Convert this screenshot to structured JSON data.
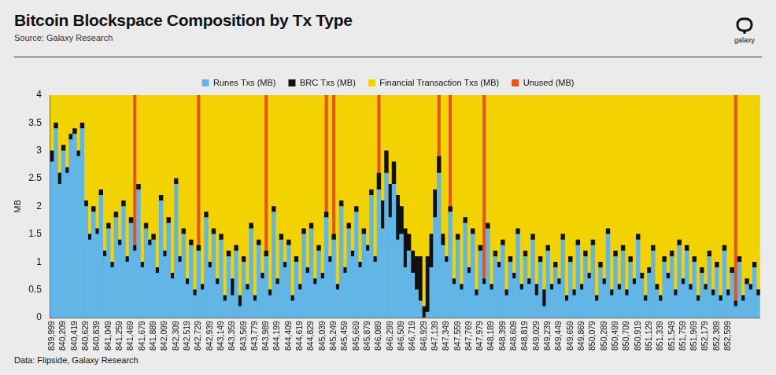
{
  "chart_data": {
    "type": "bar",
    "title": "Bitcoin Blockspace Composition by Tx Type",
    "subtitle": "Source: Galaxy Research",
    "brand": "galaxy",
    "footnote": "Data: Flipside, Galaxy Research",
    "y_label": "MB",
    "stacked": true,
    "grid": false,
    "legend": "top",
    "ylim": [
      0,
      4
    ],
    "yticks": [
      0,
      0.5,
      1,
      1.5,
      2,
      2.5,
      3,
      3.5,
      4
    ],
    "categories": [
      "839,999",
      null,
      null,
      "840,209",
      null,
      null,
      "840,419",
      null,
      null,
      "840,629",
      null,
      null,
      "840,839",
      null,
      null,
      "841,049",
      null,
      null,
      "841,259",
      null,
      null,
      "841,469",
      null,
      null,
      "841,679",
      null,
      null,
      "841,889",
      null,
      null,
      "842,099",
      null,
      null,
      "842,309",
      null,
      null,
      "842,519",
      null,
      null,
      "842,729",
      null,
      null,
      "842,939",
      null,
      null,
      "843,149",
      null,
      null,
      "843,359",
      null,
      null,
      "843,569",
      null,
      null,
      "843,779",
      null,
      null,
      "843,989",
      null,
      null,
      "844,199",
      null,
      null,
      "844,409",
      null,
      null,
      "844,619",
      null,
      null,
      "844,829",
      null,
      null,
      "845,039",
      null,
      null,
      "845,249",
      null,
      null,
      "845,459",
      null,
      null,
      "845,669",
      null,
      null,
      "845,879",
      null,
      null,
      "846,089",
      null,
      null,
      "846,299",
      null,
      null,
      "846,509",
      null,
      null,
      "846,719",
      null,
      null,
      "846,929",
      null,
      null,
      "847,139",
      null,
      null,
      "847,349",
      null,
      null,
      "847,559",
      null,
      null,
      "847,769",
      null,
      null,
      "847,979",
      null,
      null,
      "848,189",
      null,
      null,
      "848,399",
      null,
      null,
      "848,609",
      null,
      null,
      "848,819",
      null,
      null,
      "849,029",
      null,
      null,
      "849,239",
      null,
      null,
      "849,449",
      null,
      null,
      "849,659",
      null,
      null,
      "849,869",
      null,
      null,
      "850,079",
      null,
      null,
      "850,289",
      null,
      null,
      "850,499",
      null,
      null,
      "850,709",
      null,
      null,
      "850,919",
      null,
      null,
      "851,129",
      null,
      null,
      "851,339",
      null,
      null,
      "851,549",
      null,
      null,
      "851,759",
      null,
      null,
      "851,969",
      null,
      null,
      "852,179",
      null,
      null,
      "852,389",
      null,
      null,
      "852,599",
      null,
      null,
      null,
      null,
      null,
      null,
      null,
      null
    ],
    "series": [
      {
        "name": "Runes Txs (MB)",
        "color": "#62b6e6",
        "values": [
          2.8,
          3.4,
          2.4,
          3.0,
          2.6,
          3.2,
          3.3,
          2.9,
          3.4,
          2.0,
          1.4,
          1.9,
          1.5,
          2.2,
          1.1,
          1.6,
          0.9,
          1.8,
          1.3,
          2.0,
          1.0,
          1.7,
          1.2,
          2.3,
          0.9,
          1.6,
          1.3,
          1.4,
          0.8,
          2.1,
          1.1,
          1.7,
          0.7,
          2.4,
          1.0,
          1.5,
          0.6,
          1.3,
          0.4,
          1.2,
          0.5,
          1.8,
          0.9,
          1.5,
          0.6,
          1.4,
          0.3,
          1.1,
          0.4,
          1.2,
          0.2,
          1.0,
          0.5,
          1.6,
          0.3,
          1.3,
          0.7,
          1.1,
          0.4,
          1.9,
          0.6,
          1.4,
          0.9,
          1.3,
          0.3,
          1.0,
          0.5,
          1.5,
          0.8,
          1.6,
          0.6,
          1.2,
          0.7,
          1.8,
          1.0,
          1.4,
          0.5,
          2.0,
          0.8,
          1.6,
          1.1,
          1.9,
          0.9,
          1.5,
          1.2,
          2.2,
          1.0,
          2.3,
          1.6,
          2.6,
          1.8,
          2.4,
          1.4,
          1.5,
          0.9,
          1.2,
          0.8,
          0.5,
          0.3,
          0,
          0.1,
          0.9,
          1.8,
          2.6,
          1.3,
          1.0,
          1.9,
          0.6,
          1.4,
          0.5,
          1.7,
          0.8,
          1.5,
          0.4,
          1.2,
          0.6,
          1.6,
          0.5,
          1.1,
          0.9,
          1.3,
          0.4,
          1.0,
          0.7,
          1.5,
          0.5,
          1.1,
          0.6,
          1.4,
          0.4,
          1.0,
          0.2,
          1.2,
          0.5,
          0.9,
          0.6,
          1.4,
          0.3,
          1.0,
          0.4,
          1.3,
          0.5,
          1.1,
          0.7,
          1.3,
          0.3,
          0.9,
          0.6,
          1.5,
          0.4,
          1.1,
          0.5,
          1.2,
          0.4,
          1.0,
          0.6,
          1.4,
          0.7,
          0.3,
          0.8,
          1.2,
          0.5,
          0.3,
          1.0,
          0.7,
          1.1,
          0.4,
          1.3,
          0.6,
          1.2,
          0.5,
          1.0,
          0.3,
          0.8,
          0.5,
          1.1,
          0.4,
          0.9,
          0.3,
          1.2,
          0.4,
          0.8,
          0.2,
          1.0,
          0.3,
          0.6,
          0.5,
          0.9,
          0.4
        ]
      },
      {
        "name": "BRC Txs (MB)",
        "color": "#111111",
        "values": [
          0.2,
          0.1,
          0.2,
          0.1,
          0.1,
          0.1,
          0.1,
          0.1,
          0.1,
          0.1,
          0.1,
          0.1,
          0.1,
          0.1,
          0.1,
          0.1,
          0.1,
          0.1,
          0.1,
          0.1,
          0.1,
          0.1,
          0.1,
          0.1,
          0.1,
          0.1,
          0.1,
          0.1,
          0.1,
          0.1,
          0.1,
          0.1,
          0.1,
          0.1,
          0.1,
          0.1,
          0.1,
          0.1,
          0.1,
          0.1,
          0.1,
          0.1,
          0.1,
          0.1,
          0.1,
          0.1,
          0.1,
          0.1,
          0.3,
          0.1,
          0.2,
          0.1,
          0.1,
          0.1,
          0.1,
          0.1,
          0.1,
          0.1,
          0.1,
          0.1,
          0.1,
          0.1,
          0.1,
          0.1,
          0.1,
          0.1,
          0.1,
          0.1,
          0.1,
          0.1,
          0.1,
          0.1,
          0.1,
          0.1,
          0.1,
          0.1,
          0.1,
          0.1,
          0.1,
          0.1,
          0.1,
          0.1,
          0.1,
          0.1,
          0.1,
          0.1,
          0.1,
          0.3,
          0.5,
          0.4,
          0.6,
          0.4,
          0.8,
          0.5,
          0.7,
          0.3,
          0.4,
          0.6,
          0.8,
          0.2,
          1.0,
          0.6,
          0.5,
          0.3,
          0.2,
          0.1,
          0.1,
          0.1,
          0.1,
          0.1,
          0.1,
          0.1,
          0.1,
          0.1,
          0.1,
          0.1,
          0.1,
          0.1,
          0.1,
          0.1,
          0.1,
          0.1,
          0.1,
          0.1,
          0.1,
          0.1,
          0.1,
          0.1,
          0.1,
          0.2,
          0.1,
          0.3,
          0.1,
          0.1,
          0.1,
          0.1,
          0.1,
          0.1,
          0.1,
          0.1,
          0.1,
          0.1,
          0.1,
          0.1,
          0.1,
          0.1,
          0.1,
          0.1,
          0.1,
          0.1,
          0.1,
          0.1,
          0.1,
          0.1,
          0.1,
          0.1,
          0.1,
          0.1,
          0.1,
          0.1,
          0.1,
          0.1,
          0.1,
          0.1,
          0.1,
          0.1,
          0.1,
          0.1,
          0.1,
          0.1,
          0.1,
          0.1,
          0.1,
          0.1,
          0.1,
          0.1,
          0.1,
          0.1,
          0.1,
          0.1,
          0.1,
          0.1,
          0.1,
          0.1,
          0.1,
          0.1,
          0.1,
          0.1,
          0.1
        ]
      },
      {
        "name": "Financial Transaction Txs (MB)",
        "color": "#f2d200",
        "values": [
          1.0,
          0.5,
          1.4,
          0.9,
          1.3,
          0.7,
          0.6,
          1.0,
          0.5,
          1.9,
          2.5,
          2.0,
          2.4,
          1.7,
          2.8,
          2.3,
          3.0,
          2.1,
          2.6,
          1.9,
          2.9,
          2.2,
          0,
          1.6,
          3.0,
          2.3,
          2.6,
          2.5,
          3.1,
          1.8,
          2.8,
          2.2,
          3.2,
          1.5,
          2.9,
          2.4,
          3.3,
          2.6,
          3.5,
          0,
          3.4,
          2.1,
          3.0,
          2.4,
          3.3,
          2.5,
          3.6,
          2.8,
          3.3,
          2.7,
          3.6,
          2.9,
          3.4,
          2.3,
          3.6,
          2.6,
          3.2,
          0,
          3.5,
          2.0,
          3.3,
          2.5,
          3.0,
          2.6,
          3.6,
          2.9,
          3.4,
          2.4,
          3.1,
          2.3,
          3.3,
          2.7,
          3.2,
          0,
          2.9,
          0,
          3.4,
          1.9,
          3.1,
          2.3,
          2.8,
          2.0,
          3.0,
          2.4,
          2.7,
          1.7,
          2.9,
          0,
          1.9,
          1.0,
          1.6,
          1.2,
          1.8,
          2.0,
          2.4,
          2.5,
          2.8,
          2.9,
          2.9,
          3.8,
          2.9,
          2.5,
          1.7,
          0,
          2.5,
          2.9,
          0,
          3.3,
          2.5,
          3.4,
          2.2,
          3.1,
          2.4,
          3.5,
          2.7,
          0,
          2.3,
          3.4,
          2.8,
          3.0,
          2.6,
          3.5,
          2.9,
          3.2,
          2.4,
          3.4,
          2.8,
          3.3,
          2.5,
          3.4,
          2.9,
          3.5,
          2.7,
          3.4,
          3.0,
          3.3,
          2.5,
          3.6,
          2.9,
          3.5,
          2.6,
          3.4,
          2.8,
          3.2,
          2.6,
          3.6,
          3.0,
          3.3,
          2.4,
          3.5,
          2.8,
          3.4,
          2.7,
          3.5,
          2.9,
          3.3,
          2.5,
          3.2,
          3.6,
          3.1,
          2.7,
          3.4,
          3.6,
          2.9,
          3.2,
          2.8,
          3.5,
          2.6,
          3.3,
          2.7,
          3.4,
          2.9,
          3.6,
          3.1,
          3.4,
          2.8,
          3.5,
          3.0,
          3.6,
          2.7,
          3.5,
          3.1,
          0,
          2.9,
          3.6,
          3.3,
          3.4,
          3.0,
          3.5
        ]
      },
      {
        "name": "Unused (MB)",
        "color": "#e8531c",
        "values": [
          0,
          0,
          0,
          0,
          0,
          0,
          0,
          0,
          0,
          0,
          0,
          0,
          0,
          0,
          0,
          0,
          0,
          0,
          0,
          0,
          0,
          0,
          2.7,
          0,
          0,
          0,
          0,
          0,
          0,
          0,
          0,
          0,
          0,
          0,
          0,
          0,
          0,
          0,
          0,
          2.7,
          0,
          0,
          0,
          0,
          0,
          0,
          0,
          0,
          0,
          0,
          0,
          0,
          0,
          0,
          0,
          0,
          0,
          2.8,
          0,
          0,
          0,
          0,
          0,
          0,
          0,
          0,
          0,
          0,
          0,
          0,
          0,
          0,
          0,
          2.1,
          0,
          2.5,
          0,
          0,
          0,
          0,
          0,
          0,
          0,
          0,
          0,
          0,
          0,
          1.4,
          0,
          0,
          0,
          0,
          0,
          0,
          0,
          0,
          0,
          0,
          0,
          0,
          0,
          0,
          0,
          1.1,
          0,
          0,
          2.0,
          0,
          0,
          0,
          0,
          0,
          0,
          0,
          0,
          3.3,
          0,
          0,
          0,
          0,
          0,
          0,
          0,
          0,
          0,
          0,
          0,
          0,
          0,
          0,
          0,
          0,
          0,
          0,
          0,
          0,
          0,
          0,
          0,
          0,
          0,
          0,
          0,
          0,
          0,
          0,
          0,
          0,
          0,
          0,
          0,
          0,
          0,
          0,
          0,
          0,
          0,
          0,
          0,
          0,
          0,
          0,
          0,
          0,
          0,
          0,
          0,
          0,
          0,
          0,
          0,
          0,
          0,
          0,
          0,
          0,
          0,
          0,
          0,
          0,
          0,
          0,
          3.7,
          0,
          0,
          0,
          0,
          0,
          0
        ]
      }
    ]
  }
}
